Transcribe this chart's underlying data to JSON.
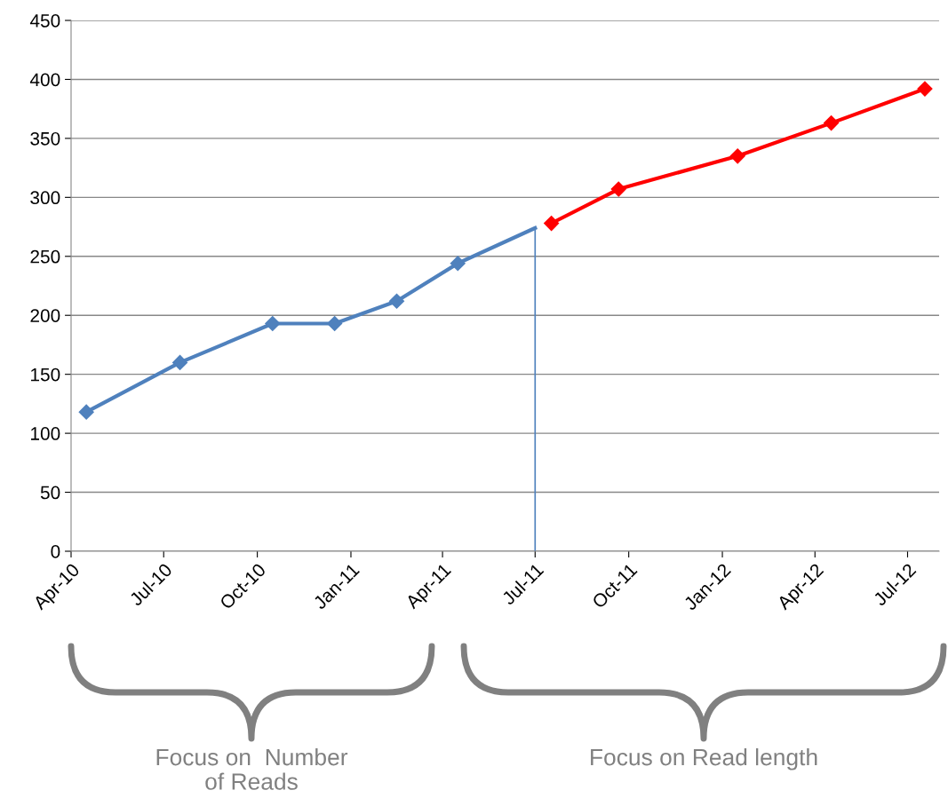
{
  "chart_data": {
    "type": "line",
    "marker": "diamond",
    "line_style": "solid",
    "legend": false,
    "grid": "y",
    "series": [
      {
        "color": "#4f81bd",
        "x": [
          "2010-04-16",
          "2010-07-17",
          "2010-10-16",
          "2010-12-16",
          "2011-02-15",
          "2011-04-16"
        ],
        "values": [
          118,
          160,
          193,
          193,
          212,
          244
        ]
      },
      {
        "color": "#4f81bd",
        "marker": "none",
        "x": [
          "2011-04-16",
          "2011-07-01"
        ],
        "values": [
          244,
          274
        ]
      },
      {
        "color": "#ff0000",
        "x": [
          "2011-07-17",
          "2011-09-21",
          "2012-01-16",
          "2012-04-17",
          "2012-07-18"
        ],
        "values": [
          278,
          307,
          335,
          363,
          392
        ]
      }
    ],
    "xlim": [
      "2010-04-01",
      "2012-08-01"
    ],
    "xticks": [
      {
        "value": "2010-04-01",
        "label": "Apr-10"
      },
      {
        "value": "2010-07-01",
        "label": "Jul-10"
      },
      {
        "value": "2010-10-01",
        "label": "Oct-10"
      },
      {
        "value": "2011-01-01",
        "label": "Jan-11"
      },
      {
        "value": "2011-04-01",
        "label": "Apr-11"
      },
      {
        "value": "2011-07-01",
        "label": "Jul-11"
      },
      {
        "value": "2011-10-01",
        "label": "Oct-11"
      },
      {
        "value": "2012-01-01",
        "label": "Jan-12"
      },
      {
        "value": "2012-04-01",
        "label": "Apr-12"
      },
      {
        "value": "2012-07-01",
        "label": "Jul-12"
      }
    ],
    "ylim": [
      0,
      450
    ],
    "yticks": [
      0,
      50,
      100,
      150,
      200,
      250,
      300,
      350,
      400,
      450
    ],
    "ref_lines": [
      {
        "axis": "x",
        "value": "2011-07-01",
        "color": "#4f81bd"
      }
    ],
    "annotations": [
      "Focus on  Number\nof Reads",
      "Focus on Read length"
    ]
  }
}
